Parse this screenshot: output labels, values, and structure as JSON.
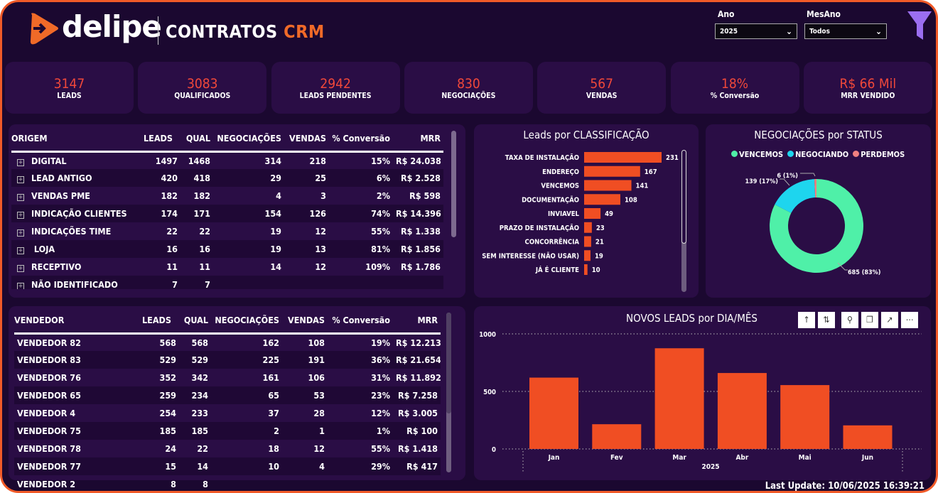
{
  "header": {
    "brand": "delipe",
    "title_main": "CONTRATOS",
    "title_accent": "CRM"
  },
  "filters": {
    "ano_label": "Ano",
    "ano_value": "2025",
    "mesano_label": "MesAno",
    "mesano_value": "Todos",
    "filter_icon": "funnel-icon"
  },
  "kpis": [
    {
      "value": "3147",
      "label": "LEADS"
    },
    {
      "value": "3083",
      "label": "QUALIFICADOS"
    },
    {
      "value": "2942",
      "label": "LEADS PENDENTES"
    },
    {
      "value": "830",
      "label": "NEGOCIAÇÕES"
    },
    {
      "value": "567",
      "label": "VENDAS"
    },
    {
      "value": "18%",
      "label": "% Conversão"
    },
    {
      "value": "R$ 66 Mil",
      "label": "MRR VENDIDO"
    }
  ],
  "origem_table": {
    "columns": [
      "ORIGEM",
      "LEADS",
      "QUAL",
      "NEGOCIAÇÕES",
      "VENDAS",
      "% Conversão",
      "MRR"
    ],
    "rows": [
      [
        "DIGITAL",
        "1497",
        "1468",
        "314",
        "218",
        "15%",
        "R$ 24.038"
      ],
      [
        "LEAD ANTIGO",
        "420",
        "418",
        "29",
        "25",
        "6%",
        "R$ 2.528"
      ],
      [
        "VENDAS PME",
        "182",
        "182",
        "4",
        "3",
        "2%",
        "R$ 598"
      ],
      [
        "INDICAÇÃO CLIENTES",
        "174",
        "171",
        "154",
        "126",
        "74%",
        "R$ 14.396"
      ],
      [
        "INDICAÇÕES TIME",
        "22",
        "22",
        "19",
        "12",
        "55%",
        "R$ 1.338"
      ],
      [
        " LOJA",
        "16",
        "16",
        "19",
        "13",
        "81%",
        "R$ 1.856"
      ],
      [
        "RECEPTIVO",
        "11",
        "11",
        "14",
        "12",
        "109%",
        "R$ 1.786"
      ],
      [
        "NÃO IDENTIFICADO",
        "7",
        "7",
        "",
        "",
        "",
        ""
      ]
    ]
  },
  "vendedor_table": {
    "columns": [
      "VENDEDOR",
      "LEADS",
      "QUAL",
      "NEGOCIAÇÕES",
      "VENDAS",
      "% Conversão",
      "MRR"
    ],
    "rows": [
      [
        "VENDEDOR 82",
        "568",
        "568",
        "162",
        "108",
        "19%",
        "R$ 12.213"
      ],
      [
        "VENDEDOR 83",
        "529",
        "529",
        "225",
        "191",
        "36%",
        "R$ 21.654"
      ],
      [
        "VENDEDOR 76",
        "352",
        "342",
        "161",
        "106",
        "31%",
        "R$ 11.892"
      ],
      [
        "VENDEDOR 65",
        "259",
        "234",
        "65",
        "53",
        "23%",
        "R$ 7.258"
      ],
      [
        "VENDEDOR 4",
        "254",
        "233",
        "37",
        "28",
        "12%",
        "R$ 3.005"
      ],
      [
        "VENDEDOR 75",
        "185",
        "185",
        "2",
        "1",
        "1%",
        "R$ 100"
      ],
      [
        "VENDEDOR 78",
        "24",
        "22",
        "18",
        "12",
        "55%",
        "R$ 1.418"
      ],
      [
        "VENDEDOR 77",
        "15",
        "14",
        "10",
        "4",
        "29%",
        "R$ 417"
      ],
      [
        "VENDEDOR 2",
        "8",
        "8",
        "",
        "",
        "",
        ""
      ]
    ]
  },
  "chart_data": [
    {
      "type": "bar",
      "orientation": "horizontal",
      "title": "Leads por CLASSIFICAÇÃO",
      "categories": [
        "TAXA DE INSTALAÇÃO",
        "ENDEREÇO",
        "VENCEMOS",
        "DOCUMENTAÇÃO",
        "INVIAVEL",
        "PRAZO DE INSTALAÇÃO",
        "CONCORRÊNCIA",
        "SEM INTERESSE (NÃO USAR)",
        "JÁ É CLIENTE"
      ],
      "values": [
        231,
        167,
        141,
        108,
        49,
        23,
        21,
        19,
        10
      ],
      "color": "#f04e23"
    },
    {
      "type": "pie",
      "donut": true,
      "title": "NEGOCIAÇÕES por STATUS",
      "legend_position": "top",
      "series": [
        {
          "name": "VENCEMOS",
          "value": 685,
          "label": "685 (83%)",
          "color": "#4ff0a8"
        },
        {
          "name": "NEGOCIANDO",
          "value": 139,
          "label": "139 (17%)",
          "color": "#1ed5ee"
        },
        {
          "name": "PERDEMOS",
          "value": 6,
          "label": "6 (1%)",
          "color": "#f08080"
        }
      ]
    },
    {
      "type": "bar",
      "title": "NOVOS LEADS por DIA/MÊS",
      "categories": [
        "Jan",
        "Fev",
        "Mar",
        "Abr",
        "Mai",
        "Jun"
      ],
      "group_label": "2025",
      "values": [
        620,
        215,
        875,
        660,
        555,
        205
      ],
      "ylim": [
        0,
        1000
      ],
      "yticks": [
        "0",
        "500",
        "1000"
      ],
      "grid": true,
      "color": "#f04e23"
    }
  ],
  "footer": {
    "last_update": "Last Update: 10/06/2025 16:39:21"
  }
}
